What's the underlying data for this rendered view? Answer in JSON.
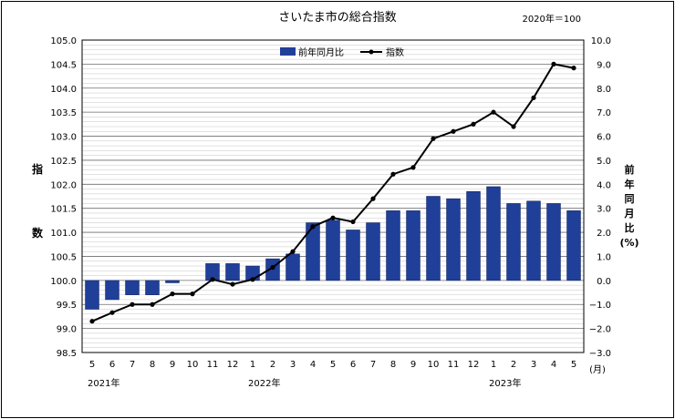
{
  "chart_data": {
    "type": "bar",
    "title": "さいたま市の総合指数",
    "base_note": "2020年＝100",
    "left_axis_label": [
      "指",
      "数"
    ],
    "right_axis_label": [
      "前",
      "年",
      "同",
      "月",
      "比",
      "(%)"
    ],
    "x_unit": "(月)",
    "categories": [
      "5",
      "6",
      "7",
      "8",
      "9",
      "10",
      "11",
      "12",
      "1",
      "2",
      "3",
      "4",
      "5",
      "6",
      "7",
      "8",
      "9",
      "10",
      "11",
      "12",
      "1",
      "2",
      "3",
      "4",
      "5"
    ],
    "year_labels": [
      {
        "label": "2021年",
        "index": 0
      },
      {
        "label": "2022年",
        "index": 8
      },
      {
        "label": "2023年",
        "index": 20
      }
    ],
    "ylim_left": [
      98.5,
      105.0
    ],
    "left_ticks": [
      "98.5",
      "99.0",
      "99.5",
      "100.0",
      "100.5",
      "101.0",
      "101.5",
      "102.0",
      "102.5",
      "103.0",
      "103.5",
      "104.0",
      "104.5",
      "105.0"
    ],
    "ylim_right": [
      -3.0,
      10.0
    ],
    "right_ticks": [
      "−3.0",
      "−2.0",
      "−1.0",
      "0.0",
      "1.0",
      "2.0",
      "3.0",
      "4.0",
      "5.0",
      "6.0",
      "7.0",
      "8.0",
      "9.0",
      "10.0"
    ],
    "grid": true,
    "legend_position": "top-center",
    "series": [
      {
        "name": "前年同月比",
        "type": "bar",
        "axis": "right",
        "color": "#1f3f99",
        "values": [
          -1.2,
          -0.8,
          -0.6,
          -0.6,
          -0.1,
          0.0,
          0.7,
          0.7,
          0.6,
          0.9,
          1.1,
          2.4,
          2.5,
          2.1,
          2.4,
          2.9,
          2.9,
          3.5,
          3.4,
          3.7,
          3.9,
          3.2,
          3.3,
          3.2,
          2.9
        ]
      },
      {
        "name": "指数",
        "type": "line",
        "axis": "left",
        "color": "#000000",
        "values": [
          99.15,
          99.33,
          99.5,
          99.5,
          99.72,
          99.72,
          100.02,
          99.92,
          100.02,
          100.27,
          100.6,
          101.12,
          101.3,
          101.22,
          101.7,
          102.21,
          102.35,
          102.95,
          103.1,
          103.25,
          103.5,
          103.2,
          103.8,
          104.5,
          104.42
        ]
      }
    ]
  }
}
